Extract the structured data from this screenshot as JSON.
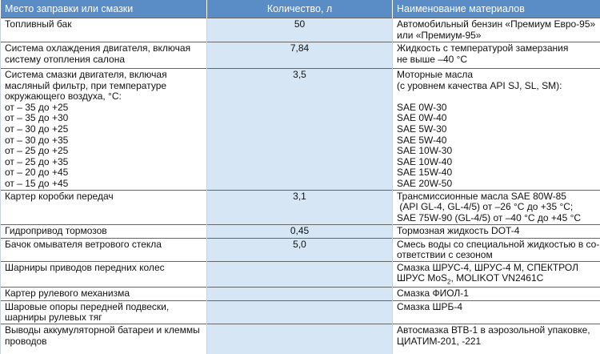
{
  "table": {
    "header": [
      "Место заправки или смазки",
      "Количество, л",
      "Наименование материалов"
    ],
    "rows": [
      {
        "place": [
          [
            "Топливный бак"
          ]
        ],
        "amount": "50",
        "material": [
          [
            "Автомобильный бензин «Премиум Евро-95»",
            "или «Премиум-95»"
          ]
        ]
      },
      {
        "place": [
          [
            "Система охлаждения двигателя, включая",
            "систему отопления салона"
          ]
        ],
        "amount": "7,84",
        "material": [
          [
            "Жидкость с температурой замерзания",
            "не выше –40 °С"
          ]
        ]
      },
      {
        "place": [
          [
            "Система смазки двигателя, включая",
            "масляный фильтр, при температуре",
            "окружающего воздуха, °С:",
            "от – 35 до +25",
            "от – 35 до +30",
            "от – 30 до +25",
            "от – 30 до +35",
            "от – 25 до +25",
            "от – 25 до +35",
            "от – 20 до +45",
            "от – 15 до +45"
          ]
        ],
        "amount": "3,5",
        "material": [
          [
            "Моторные масла",
            "(с уровнем качества API SJ, SL, SM):"
          ],
          [
            "SAE 0W-30",
            "SAE 0W-40",
            "SAE 5W-30",
            "SAE 5W-40",
            "SAE 10W-30",
            "SAE 10W-40",
            "SAE 15W-40",
            "SAE 20W-50"
          ]
        ]
      },
      {
        "place": [
          [
            "Картер коробки передач"
          ]
        ],
        "amount": "3,1",
        "material": [
          [
            "Трансмиссионные масла SAE 80W-85",
            " (API GL-4, GL-4/5) от –26 °С до +35 °С;",
            "SAE 75W-90 (GL-4/5) от –40 °С до +45 °С"
          ]
        ]
      },
      {
        "place": [
          [
            "Гидропривод тормозов"
          ]
        ],
        "amount": "0,45",
        "material": [
          [
            "Тормозная жидкость DOT-4"
          ]
        ]
      },
      {
        "place": [
          [
            "Бачок омывателя ветрового стекла"
          ]
        ],
        "amount": "5,0",
        "material": [
          [
            "Смесь воды со специальной жидкостью в со-",
            "ответствии с сезоном"
          ]
        ]
      },
      {
        "place": [
          [
            "Шарниры приводов передних колес"
          ]
        ],
        "material": [
          [
            "Смазка ШРУС-4, ШРУС-4 М, СПЕКТРОЛ",
            {
              "main": "ШРУС MoS",
              "sub": "2",
              "rest": ", MOLIKOT VN2461C"
            }
          ]
        ]
      },
      {
        "place": [
          [
            "Картер рулевого механизма"
          ]
        ],
        "material": [
          [
            "Смазка ФИОЛ-1"
          ]
        ]
      },
      {
        "place": [
          [
            "Шаровые опоры передней подвески,",
            "шарниры рулевых тяг"
          ]
        ],
        "material": [
          [
            "Смазка ШРБ-4"
          ]
        ]
      },
      {
        "place": [
          [
            "Выводы аккумуляторной батареи и клеммы",
            "проводов"
          ]
        ],
        "material": [
          [
            "Автосмазка ВТВ-1 в аэрозольной упаковке,",
            "ЦИАТИМ-201, -221"
          ]
        ]
      }
    ]
  }
}
